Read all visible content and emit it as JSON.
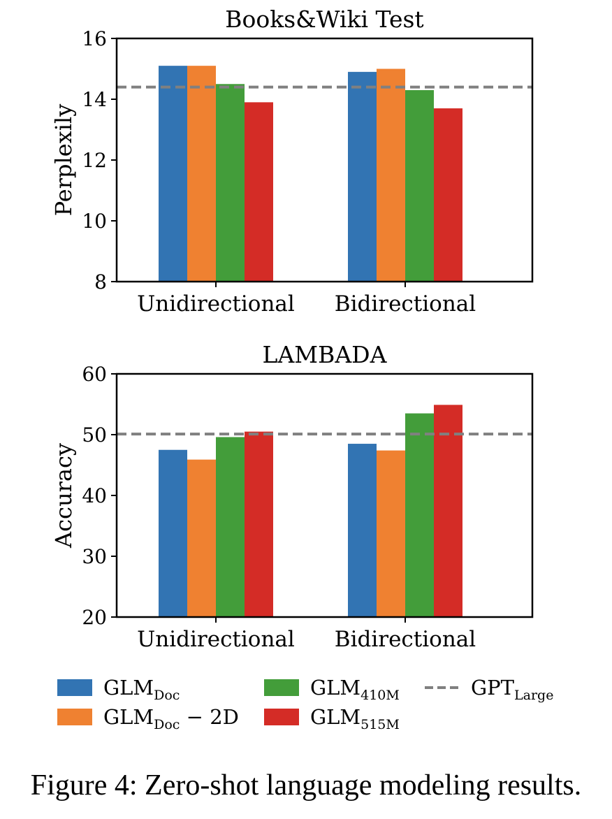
{
  "chart_data": [
    {
      "type": "bar",
      "title": "Books&Wiki Test",
      "ylabel": "Perplexily",
      "xlabel": "",
      "categories": [
        "Unidirectional",
        "Bidirectional"
      ],
      "ylim": [
        8,
        16
      ],
      "yticks": [
        8,
        10,
        12,
        14,
        16
      ],
      "series": [
        {
          "name": "GLM_Doc",
          "values": [
            15.1,
            14.9
          ]
        },
        {
          "name": "GLM_Doc – 2D",
          "values": [
            15.1,
            15.0
          ]
        },
        {
          "name": "GLM_410M",
          "values": [
            14.5,
            14.3
          ]
        },
        {
          "name": "GLM_515M",
          "values": [
            13.9,
            13.7
          ]
        }
      ],
      "reference_line": {
        "name": "GPT_Large",
        "value": 14.4
      }
    },
    {
      "type": "bar",
      "title": "LAMBADA",
      "ylabel": "Accuracy",
      "xlabel": "",
      "categories": [
        "Unidirectional",
        "Bidirectional"
      ],
      "ylim": [
        20,
        60
      ],
      "yticks": [
        20,
        30,
        40,
        50,
        60
      ],
      "series": [
        {
          "name": "GLM_Doc",
          "values": [
            47.5,
            48.5
          ]
        },
        {
          "name": "GLM_Doc – 2D",
          "values": [
            45.9,
            47.4
          ]
        },
        {
          "name": "GLM_410M",
          "values": [
            49.6,
            53.5
          ]
        },
        {
          "name": "GLM_515M",
          "values": [
            50.5,
            54.9
          ]
        }
      ],
      "reference_line": {
        "name": "GPT_Large",
        "value": 50.1
      }
    }
  ],
  "legend": {
    "entries": [
      {
        "base": "GLM",
        "sub": "Doc",
        "suffix": "",
        "color": "#3274b3",
        "kind": "bar"
      },
      {
        "base": "GLM",
        "sub": "Doc",
        "suffix": " − 2D",
        "color": "#ef8131",
        "kind": "bar"
      },
      {
        "base": "GLM",
        "sub": "410M",
        "suffix": "",
        "color": "#439d3a",
        "kind": "bar"
      },
      {
        "base": "GLM",
        "sub": "515M",
        "suffix": "",
        "color": "#d42c26",
        "kind": "bar"
      },
      {
        "base": "GPT",
        "sub": "Large",
        "suffix": "",
        "color": "#808080",
        "kind": "dashed-line"
      }
    ]
  },
  "colors": [
    "#3274b3",
    "#ef8131",
    "#439d3a",
    "#d42c26"
  ],
  "reference_color": "#808080",
  "caption": "Figure 4: Zero-shot language modeling results."
}
